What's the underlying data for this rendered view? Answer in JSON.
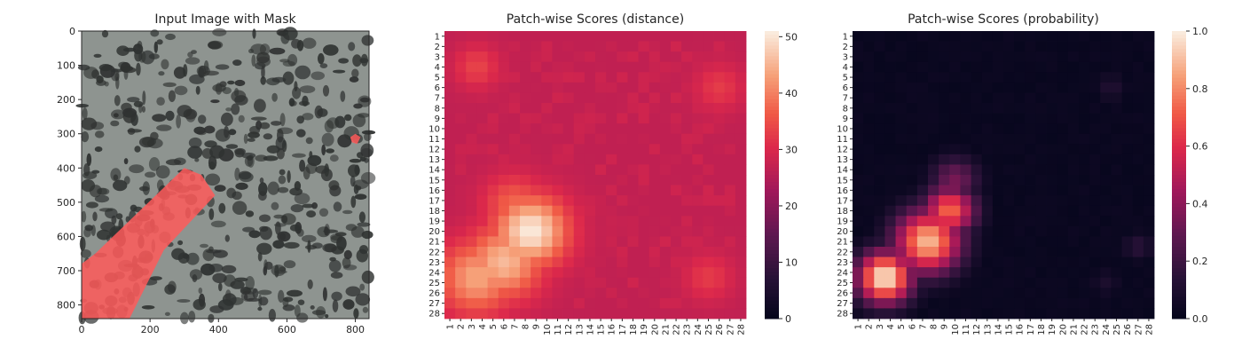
{
  "chart_data": [
    {
      "type": "image",
      "title": "Input Image with Mask",
      "xlim": [
        0,
        840
      ],
      "ylim": [
        840,
        0
      ],
      "xticks": [
        0,
        200,
        400,
        600,
        800
      ],
      "yticks": [
        0,
        100,
        200,
        300,
        400,
        500,
        600,
        700,
        800
      ],
      "background_color": "#8e9490",
      "mask_color": "#ff5a5a",
      "mask_regions": [
        {
          "name": "large-diagonal-mask",
          "polygon": [
            [
              0,
              680
            ],
            [
              40,
              650
            ],
            [
              300,
              400
            ],
            [
              350,
              420
            ],
            [
              390,
              480
            ],
            [
              240,
              640
            ],
            [
              140,
              840
            ],
            [
              0,
              840
            ]
          ]
        },
        {
          "name": "small-mask",
          "polygon": [
            [
              785,
              310
            ],
            [
              800,
              300
            ],
            [
              815,
              310
            ],
            [
              805,
              330
            ],
            [
              790,
              325
            ]
          ]
        }
      ]
    },
    {
      "type": "heatmap",
      "title": "Patch-wise Scores (distance)",
      "rows": 28,
      "cols": 28,
      "row_labels": [
        "1",
        "2",
        "3",
        "4",
        "5",
        "6",
        "7",
        "8",
        "9",
        "10",
        "11",
        "12",
        "13",
        "14",
        "15",
        "16",
        "17",
        "18",
        "19",
        "20",
        "21",
        "22",
        "23",
        "24",
        "25",
        "26",
        "27",
        "28"
      ],
      "col_labels": [
        "1",
        "2",
        "3",
        "4",
        "5",
        "6",
        "7",
        "8",
        "9",
        "10",
        "11",
        "12",
        "13",
        "14",
        "15",
        "16",
        "17",
        "18",
        "19",
        "20",
        "21",
        "22",
        "23",
        "24",
        "25",
        "26",
        "27",
        "28"
      ],
      "colorbar": {
        "min": 0,
        "max": 51,
        "ticks": [
          0,
          10,
          20,
          30,
          40,
          50
        ]
      },
      "colormap": "rocket",
      "base_value": 27,
      "border_value": 25,
      "hotspots": [
        {
          "row": 20,
          "col": 8.5,
          "peak": 51,
          "spread": 2.4
        },
        {
          "row": 24.5,
          "col": 3.5,
          "peak": 44,
          "spread": 2.5
        },
        {
          "row": 23,
          "col": 6,
          "peak": 46,
          "spread": 2.5
        },
        {
          "row": 17.5,
          "col": 7,
          "peak": 38,
          "spread": 2.0
        },
        {
          "row": 4,
          "col": 3.5,
          "peak": 34,
          "spread": 1.5
        },
        {
          "row": 6,
          "col": 26,
          "peak": 33,
          "spread": 1.6
        },
        {
          "row": 24.5,
          "col": 25,
          "peak": 33,
          "spread": 1.6
        }
      ]
    },
    {
      "type": "heatmap",
      "title": "Patch-wise Scores (probability)",
      "rows": 28,
      "cols": 28,
      "row_labels": [
        "1",
        "2",
        "3",
        "4",
        "5",
        "6",
        "7",
        "8",
        "9",
        "10",
        "11",
        "12",
        "13",
        "14",
        "15",
        "16",
        "17",
        "18",
        "19",
        "20",
        "21",
        "22",
        "23",
        "24",
        "25",
        "26",
        "27",
        "28"
      ],
      "col_labels": [
        "1",
        "2",
        "3",
        "4",
        "5",
        "6",
        "7",
        "8",
        "9",
        "10",
        "11",
        "12",
        "13",
        "14",
        "15",
        "16",
        "17",
        "18",
        "19",
        "20",
        "21",
        "22",
        "23",
        "24",
        "25",
        "26",
        "27",
        "28"
      ],
      "colorbar": {
        "min": 0.0,
        "max": 1.0,
        "ticks": [
          "0.0",
          "0.2",
          "0.4",
          "0.6",
          "0.8",
          "1.0"
        ]
      },
      "colormap": "rocket",
      "base_value": 0.02,
      "hotspots": [
        {
          "row": 24.5,
          "col": 3.5,
          "peak": 1.0,
          "spread": 1.8
        },
        {
          "row": 21,
          "col": 7.5,
          "peak": 0.9,
          "spread": 2.2
        },
        {
          "row": 18,
          "col": 9.5,
          "peak": 0.75,
          "spread": 1.7
        },
        {
          "row": 15,
          "col": 10,
          "peak": 0.35,
          "spread": 1.6
        },
        {
          "row": 6,
          "col": 24.5,
          "peak": 0.12,
          "spread": 1.0
        },
        {
          "row": 21.5,
          "col": 27,
          "peak": 0.15,
          "spread": 1.0
        },
        {
          "row": 25,
          "col": 24,
          "peak": 0.1,
          "spread": 1.0
        }
      ]
    }
  ]
}
